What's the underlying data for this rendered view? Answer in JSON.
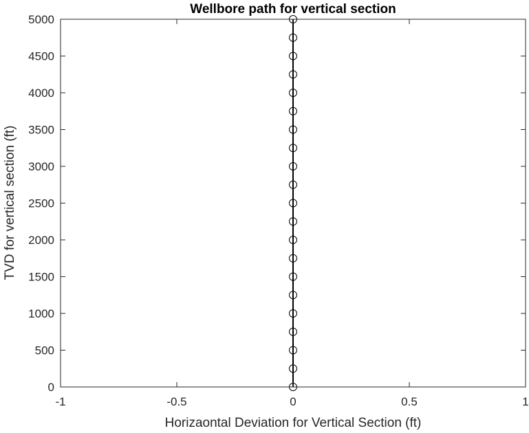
{
  "chart_data": {
    "type": "line",
    "title": "Wellbore path for vertical section",
    "xlabel": "Horizaontal Deviation for Vertical Section (ft)",
    "ylabel": "TVD for vertical section (ft)",
    "xlim": [
      -1,
      1
    ],
    "ylim": [
      0,
      5000
    ],
    "xticks": [
      -1,
      -0.5,
      0,
      0.5,
      1
    ],
    "xtick_labels": [
      "-1",
      "-0.5",
      "0",
      "0.5",
      "1"
    ],
    "yticks": [
      0,
      500,
      1000,
      1500,
      2000,
      2500,
      3000,
      3500,
      4000,
      4500,
      5000
    ],
    "ytick_labels": [
      "0",
      "500",
      "1000",
      "1500",
      "2000",
      "2500",
      "3000",
      "3500",
      "4000",
      "4500",
      "5000"
    ],
    "grid": false,
    "box": true,
    "series": [
      {
        "marker": "circle-open",
        "line_color": "#000000",
        "x": [
          0,
          0,
          0,
          0,
          0,
          0,
          0,
          0,
          0,
          0,
          0,
          0,
          0,
          0,
          0,
          0,
          0,
          0,
          0,
          0,
          0
        ],
        "y": [
          0,
          250,
          500,
          750,
          1000,
          1250,
          1500,
          1750,
          2000,
          2250,
          2500,
          2750,
          3000,
          3250,
          3500,
          3750,
          4000,
          4250,
          4500,
          4750,
          5000
        ]
      }
    ]
  }
}
